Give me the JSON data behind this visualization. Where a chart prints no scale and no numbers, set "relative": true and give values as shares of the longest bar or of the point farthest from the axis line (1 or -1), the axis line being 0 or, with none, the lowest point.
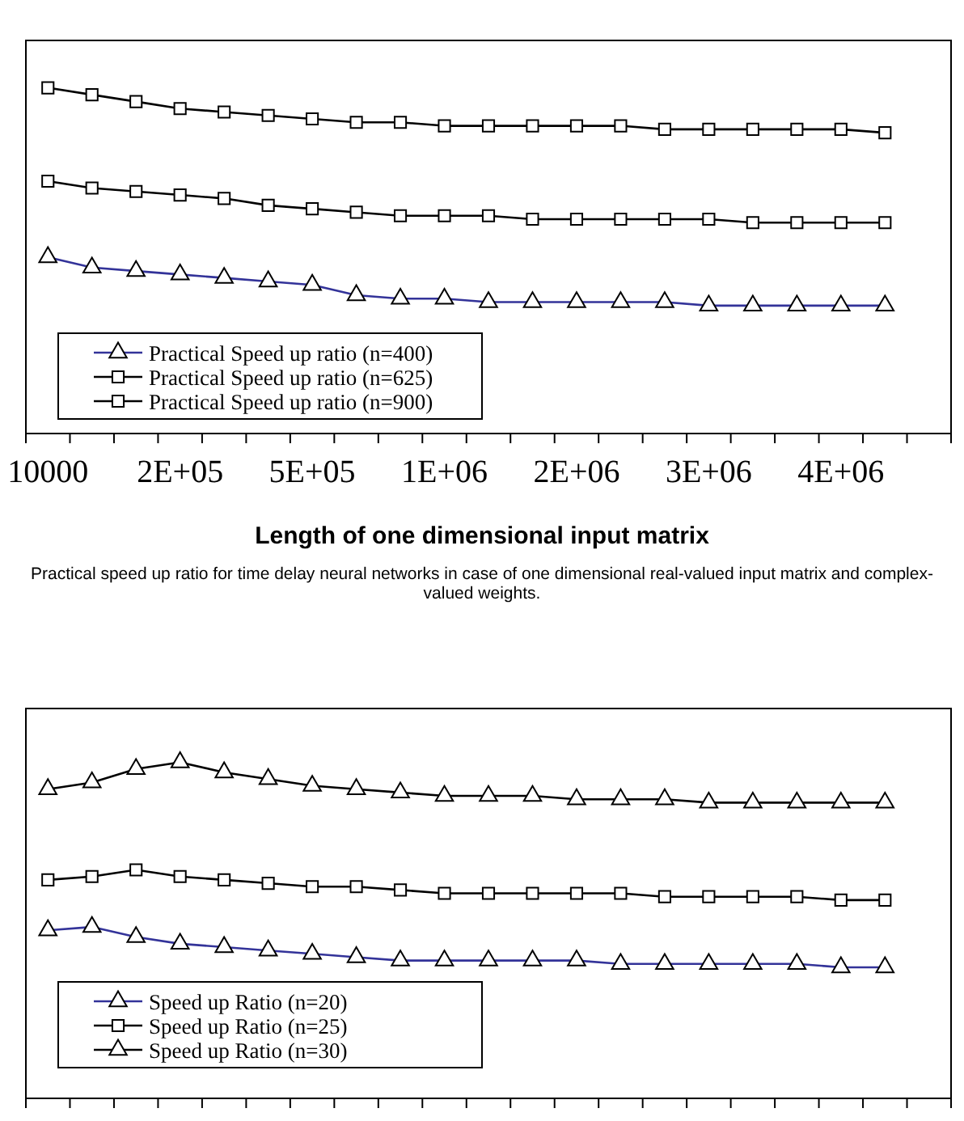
{
  "chart_data": [
    {
      "type": "line",
      "relative": true,
      "xlabel": "Length of one dimensional input matrix",
      "annotations": [
        "Practical speed up ratio for time delay neural networks in case of one dimensional real-valued input matrix and complex-valued weights."
      ],
      "legend": "bottom left",
      "categories": [
        "10000",
        null,
        null,
        "2E+05",
        null,
        null,
        "5E+05",
        null,
        null,
        "1E+06",
        null,
        null,
        "2E+06",
        null,
        null,
        "3E+06",
        null,
        null,
        "4E+06",
        null
      ],
      "series": [
        {
          "name": "Practical Speed up ratio (n=400)",
          "color": "#333399",
          "marker": "triangle",
          "values": [
            0.51,
            0.48,
            0.47,
            0.46,
            0.45,
            0.44,
            0.43,
            0.4,
            0.39,
            0.39,
            0.38,
            0.38,
            0.38,
            0.38,
            0.38,
            0.37,
            0.37,
            0.37,
            0.37,
            0.37
          ]
        },
        {
          "name": "Practical Speed up ratio (n=625)",
          "color": "#000000",
          "marker": "square",
          "values": [
            0.73,
            0.71,
            0.7,
            0.69,
            0.68,
            0.66,
            0.65,
            0.64,
            0.63,
            0.63,
            0.63,
            0.62,
            0.62,
            0.62,
            0.62,
            0.62,
            0.61,
            0.61,
            0.61,
            0.61
          ]
        },
        {
          "name": "Practical Speed up ratio (n=900)",
          "color": "#000000",
          "marker": "square",
          "values": [
            1,
            0.98,
            0.96,
            0.94,
            0.93,
            0.92,
            0.91,
            0.9,
            0.9,
            0.89,
            0.89,
            0.89,
            0.89,
            0.89,
            0.88,
            0.88,
            0.88,
            0.88,
            0.88,
            0.87
          ]
        }
      ]
    },
    {
      "type": "line",
      "relative": true,
      "legend": "bottom left",
      "categories": [
        null,
        null,
        null,
        null,
        null,
        null,
        null,
        null,
        null,
        null,
        null,
        null,
        null,
        null,
        null,
        null,
        null,
        null,
        null,
        null
      ],
      "series": [
        {
          "name": "Speed up Ratio (n=20)",
          "color": "#333399",
          "marker": "triangle",
          "values": [
            0.5,
            0.51,
            0.48,
            0.46,
            0.45,
            0.44,
            0.43,
            0.42,
            0.41,
            0.41,
            0.41,
            0.41,
            0.41,
            0.4,
            0.4,
            0.4,
            0.4,
            0.4,
            0.39,
            0.39
          ]
        },
        {
          "name": "Speed up Ratio (n=25)",
          "color": "#000000",
          "marker": "square",
          "values": [
            0.65,
            0.66,
            0.68,
            0.66,
            0.65,
            0.64,
            0.63,
            0.63,
            0.62,
            0.61,
            0.61,
            0.61,
            0.61,
            0.61,
            0.6,
            0.6,
            0.6,
            0.6,
            0.59,
            0.59
          ]
        },
        {
          "name": "Speed up Ratio (n=30)",
          "color": "#000000",
          "marker": "triangle",
          "values": [
            0.92,
            0.94,
            0.98,
            1,
            0.97,
            0.95,
            0.93,
            0.92,
            0.91,
            0.9,
            0.9,
            0.9,
            0.89,
            0.89,
            0.89,
            0.88,
            0.88,
            0.88,
            0.88,
            0.88
          ]
        }
      ]
    }
  ]
}
